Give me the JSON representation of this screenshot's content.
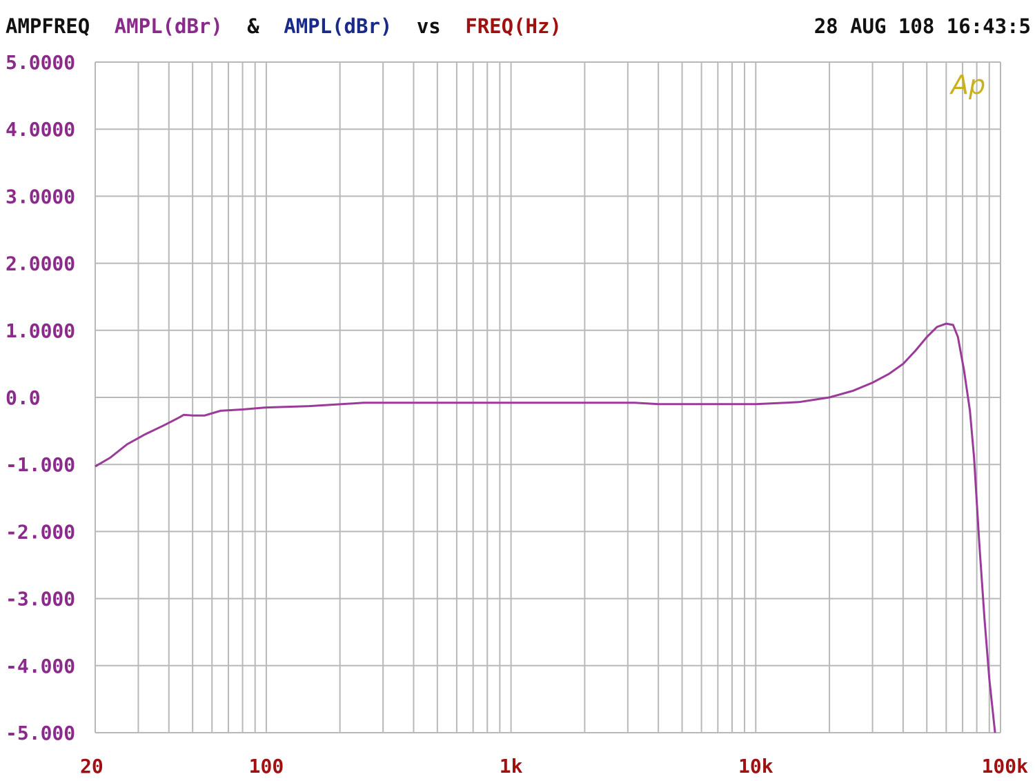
{
  "header": {
    "name": "AMPFREQ",
    "series1_label": "AMPL(dBr)",
    "amp": "&",
    "series2_label": "AMPL(dBr)",
    "vs": "vs",
    "x_label": "FREQ(Hz)",
    "timestamp": "28 AUG 108 16:43:5"
  },
  "logo": {
    "text": "Ap"
  },
  "colors": {
    "header_black": "#111111",
    "series1": "#8a2a8a",
    "series2": "#1a2a8a",
    "xaxis": "#a01010",
    "ytick": "#8a2a8a",
    "grid": "#b8b8b8",
    "trace": "#9a3a9a",
    "logo": "#c8b020"
  },
  "chart_data": {
    "type": "line",
    "x_scale": "log",
    "xlim": [
      20,
      100000
    ],
    "ylim": [
      -5,
      5
    ],
    "x_ticks": [
      {
        "value": 20,
        "label": "20"
      },
      {
        "value": 100,
        "label": "100"
      },
      {
        "value": 1000,
        "label": "1k"
      },
      {
        "value": 10000,
        "label": "10k"
      },
      {
        "value": 100000,
        "label": "100k"
      }
    ],
    "y_ticks": [
      {
        "value": 5,
        "label": "5.0000"
      },
      {
        "value": 4,
        "label": "4.0000"
      },
      {
        "value": 3,
        "label": "3.0000"
      },
      {
        "value": 2,
        "label": "2.0000"
      },
      {
        "value": 1,
        "label": "1.0000"
      },
      {
        "value": 0,
        "label": "0.0"
      },
      {
        "value": -1,
        "label": "-1.000"
      },
      {
        "value": -2,
        "label": "-2.000"
      },
      {
        "value": -3,
        "label": "-3.000"
      },
      {
        "value": -4,
        "label": "-4.000"
      },
      {
        "value": -5,
        "label": "-5.000"
      }
    ],
    "grid": true,
    "series": [
      {
        "name": "AMPL(dBr)",
        "points": [
          [
            20,
            -1.03
          ],
          [
            23,
            -0.9
          ],
          [
            27,
            -0.7
          ],
          [
            32,
            -0.55
          ],
          [
            38,
            -0.42
          ],
          [
            44,
            -0.3
          ],
          [
            46,
            -0.26
          ],
          [
            50,
            -0.27
          ],
          [
            56,
            -0.27
          ],
          [
            65,
            -0.2
          ],
          [
            80,
            -0.18
          ],
          [
            100,
            -0.15
          ],
          [
            150,
            -0.13
          ],
          [
            250,
            -0.08
          ],
          [
            500,
            -0.08
          ],
          [
            1000,
            -0.08
          ],
          [
            2000,
            -0.08
          ],
          [
            3200,
            -0.08
          ],
          [
            4000,
            -0.1
          ],
          [
            7000,
            -0.1
          ],
          [
            10000,
            -0.1
          ],
          [
            15000,
            -0.07
          ],
          [
            20000,
            0.0
          ],
          [
            25000,
            0.1
          ],
          [
            30000,
            0.22
          ],
          [
            35000,
            0.35
          ],
          [
            40000,
            0.5
          ],
          [
            45000,
            0.7
          ],
          [
            50000,
            0.9
          ],
          [
            55000,
            1.05
          ],
          [
            60000,
            1.1
          ],
          [
            64000,
            1.08
          ],
          [
            67000,
            0.9
          ],
          [
            71000,
            0.4
          ],
          [
            75000,
            -0.2
          ],
          [
            78000,
            -0.9
          ],
          [
            82000,
            -2.2
          ],
          [
            86000,
            -3.3
          ],
          [
            90000,
            -4.2
          ],
          [
            95000,
            -5.0
          ]
        ]
      }
    ]
  }
}
